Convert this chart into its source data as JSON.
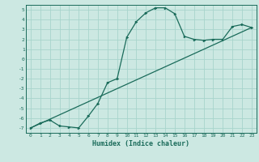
{
  "title": "",
  "xlabel": "Humidex (Indice chaleur)",
  "xlim": [
    -0.5,
    23.5
  ],
  "ylim": [
    -7.5,
    5.5
  ],
  "xticks": [
    0,
    1,
    2,
    3,
    4,
    5,
    6,
    7,
    8,
    9,
    10,
    11,
    12,
    13,
    14,
    15,
    16,
    17,
    18,
    19,
    20,
    21,
    22,
    23
  ],
  "yticks": [
    -7,
    -6,
    -5,
    -4,
    -3,
    -2,
    -1,
    0,
    1,
    2,
    3,
    4,
    5
  ],
  "bg_color": "#cce8e2",
  "line_color": "#1a6b5a",
  "grid_color": "#a8d4cc",
  "curve_x": [
    0,
    1,
    2,
    3,
    4,
    5,
    6,
    7,
    8,
    9,
    10,
    11,
    12,
    13,
    14,
    15,
    16,
    17,
    18,
    19,
    20,
    21,
    22,
    23
  ],
  "curve_y": [
    -7.0,
    -6.5,
    -6.2,
    -6.8,
    -6.9,
    -7.0,
    -5.8,
    -4.5,
    -2.4,
    -2.0,
    2.2,
    3.8,
    4.7,
    5.2,
    5.2,
    4.6,
    2.3,
    2.0,
    1.9,
    2.0,
    2.0,
    3.3,
    3.5,
    3.2
  ],
  "line_x": [
    0,
    23
  ],
  "line_y": [
    -7.0,
    3.2
  ]
}
